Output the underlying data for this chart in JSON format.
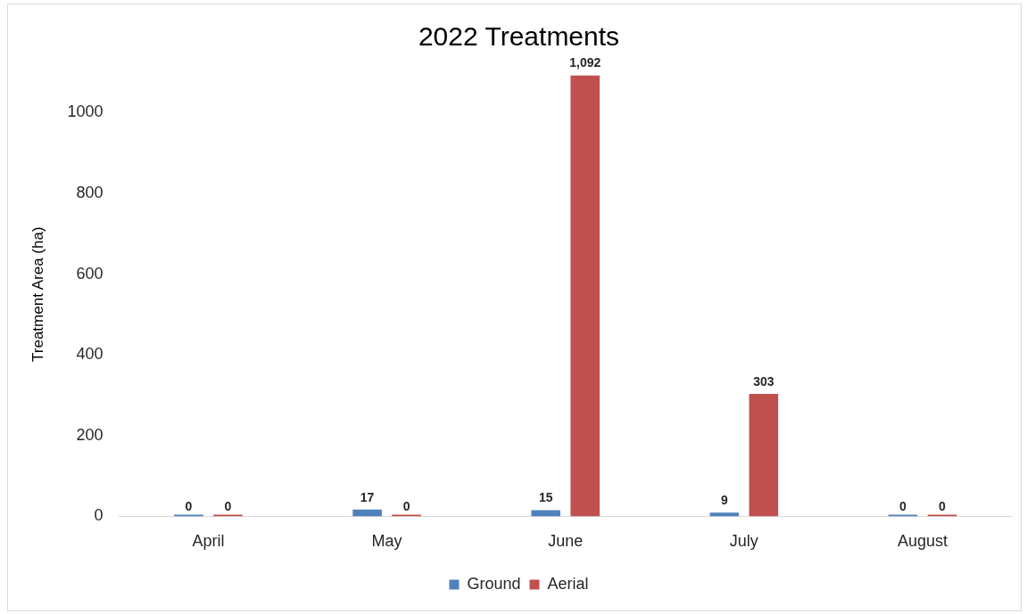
{
  "chart_data": {
    "type": "bar",
    "title": "2022 Treatments",
    "ylabel": "Treatment Area (ha)",
    "categories": [
      "April",
      "May",
      "June",
      "July",
      "August"
    ],
    "series": [
      {
        "name": "Ground",
        "color": "#4f81bd",
        "values": [
          0,
          17,
          15,
          9,
          0
        ],
        "value_labels": [
          "0",
          "17",
          "15",
          "9",
          "0"
        ]
      },
      {
        "name": "Aerial",
        "color": "#c0504d",
        "values": [
          0,
          0,
          1092,
          303,
          0
        ],
        "value_labels": [
          "0",
          "0",
          "1,092",
          "303",
          "0"
        ]
      }
    ],
    "ylim": [
      0,
      1100
    ],
    "yticks": [
      0,
      200,
      400,
      600,
      800,
      1000
    ],
    "grid": false,
    "legend": "bottom"
  }
}
